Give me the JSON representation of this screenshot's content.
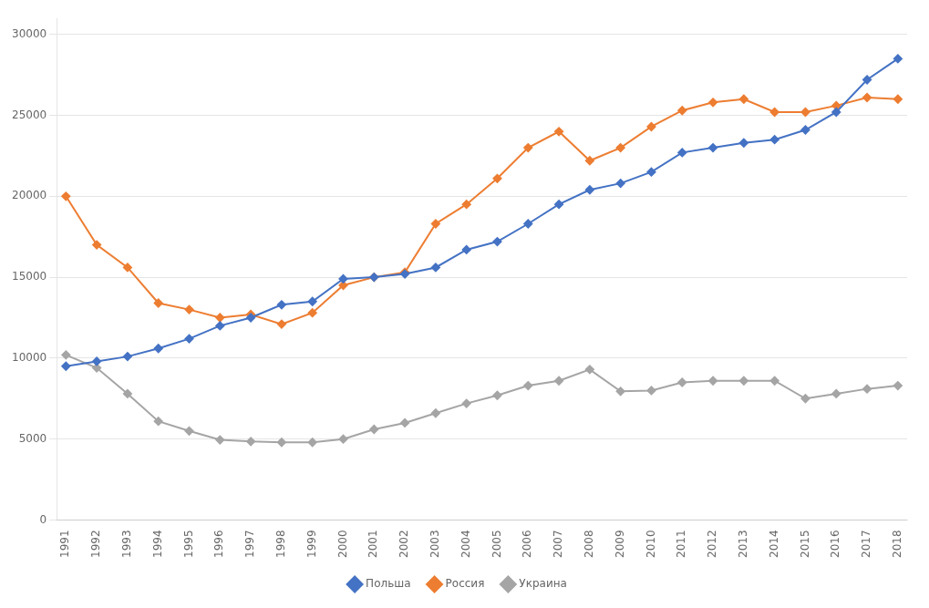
{
  "chart_data": {
    "type": "line",
    "x": [
      1991,
      1992,
      1993,
      1994,
      1995,
      1996,
      1997,
      1998,
      1999,
      2000,
      2001,
      2002,
      2003,
      2004,
      2005,
      2006,
      2007,
      2008,
      2009,
      2010,
      2011,
      2012,
      2013,
      2014,
      2015,
      2016,
      2017,
      2018
    ],
    "series": [
      {
        "name": "Польша",
        "color": "#4472C4",
        "values": [
          9500,
          9800,
          10100,
          10600,
          11200,
          12000,
          12500,
          13300,
          13500,
          14900,
          15000,
          15200,
          15600,
          16700,
          17200,
          18300,
          19500,
          20400,
          20800,
          21500,
          22700,
          23000,
          23300,
          23500,
          24100,
          25200,
          27200,
          28500
        ]
      },
      {
        "name": "Россия",
        "color": "#ED7D31",
        "values": [
          20000,
          17000,
          15600,
          13400,
          13000,
          12500,
          12700,
          12100,
          12800,
          14500,
          15000,
          15300,
          18300,
          19500,
          21100,
          23000,
          24000,
          22200,
          23000,
          24300,
          25300,
          25800,
          26000,
          25200,
          25200,
          25600,
          26100,
          26000
        ]
      },
      {
        "name": "Украина",
        "color": "#A5A5A5",
        "values": [
          10200,
          9400,
          7800,
          6100,
          5500,
          4950,
          4850,
          4800,
          4800,
          5000,
          5600,
          6000,
          6600,
          7200,
          7700,
          8300,
          8600,
          9300,
          7950,
          8000,
          8500,
          8600,
          8600,
          8600,
          7500,
          7800,
          8100,
          8300
        ]
      }
    ],
    "xlim": [
      1990.7,
      2018.3
    ],
    "xticks": [
      1991,
      1992,
      1993,
      1994,
      1995,
      1996,
      1997,
      1998,
      1999,
      2000,
      2001,
      2002,
      2003,
      2004,
      2005,
      2006,
      2007,
      2008,
      2009,
      2010,
      2011,
      2012,
      2013,
      2014,
      2015,
      2016,
      2017,
      2018
    ],
    "ylim": [
      0,
      31000
    ],
    "yticks": [
      0,
      5000,
      10000,
      15000,
      20000,
      25000,
      30000
    ],
    "grid": true,
    "legend": "bottom",
    "marker": "diamond"
  }
}
